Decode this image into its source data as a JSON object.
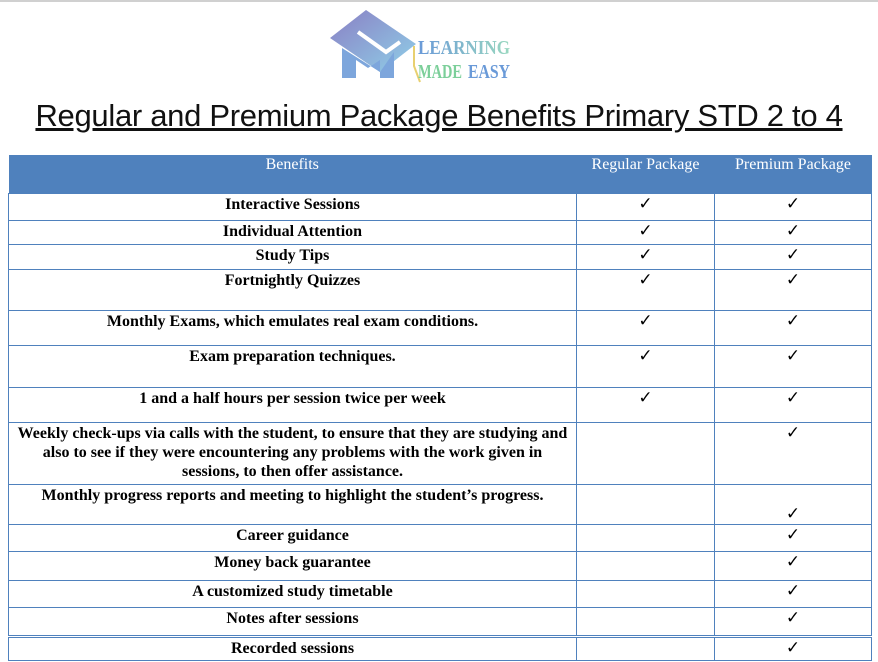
{
  "logo": {
    "line1": "LEARNING",
    "line2a": "MADE",
    "line2b": "EASY"
  },
  "title": "Regular and Premium Package Benefits Primary STD 2 to 4",
  "table": {
    "headers": [
      "Benefits",
      "Regular Package",
      "Premium Package"
    ],
    "check_symbol": "✓",
    "rows": [
      {
        "benefit": "Interactive Sessions",
        "regular": "✓",
        "premium": "✓"
      },
      {
        "benefit": "Individual Attention",
        "regular": "✓",
        "premium": "✓"
      },
      {
        "benefit": "Study Tips",
        "regular": "✓",
        "premium": "✓"
      },
      {
        "benefit": "Fortnightly Quizzes",
        "regular": "✓",
        "premium": "✓"
      },
      {
        "benefit": "Monthly Exams, which emulates real exam conditions.",
        "regular": "✓",
        "premium": "✓"
      },
      {
        "benefit": "Exam preparation techniques.",
        "regular": "✓",
        "premium": "✓"
      },
      {
        "benefit": "1 and a half hours per session twice per week",
        "regular": "✓",
        "premium": "✓"
      },
      {
        "benefit": "Weekly check-ups via calls with the student, to ensure that they are studying and also to see if they were encountering any problems with the work given in sessions, to then offer assistance.",
        "regular": "",
        "premium": "✓"
      },
      {
        "benefit": "Monthly progress reports and meeting to highlight the student’s progress.",
        "regular": "",
        "premium": "✓"
      },
      {
        "benefit": "Career guidance",
        "regular": "",
        "premium": "✓"
      },
      {
        "benefit": "Money back guarantee",
        "regular": "",
        "premium": "✓"
      },
      {
        "benefit": "A customized study timetable",
        "regular": "",
        "premium": "✓"
      },
      {
        "benefit": "Notes after sessions",
        "regular": "",
        "premium": "✓"
      },
      {
        "benefit": "Recorded sessions",
        "regular": "",
        "premium": "✓"
      }
    ]
  },
  "colors": {
    "header_bg": "#4f81bd",
    "border": "#4f81bd"
  }
}
